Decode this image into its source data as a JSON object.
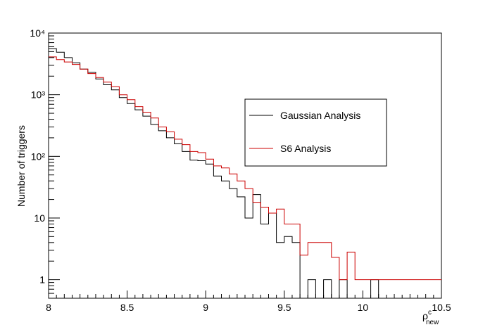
{
  "chart_data": {
    "type": "line",
    "style": "step-histogram",
    "xlabel": "ρ",
    "xlabel_sup": "c",
    "xlabel_sub": "new",
    "ylabel": "Number of triggers",
    "xlim": [
      8,
      10.5
    ],
    "ylim": [
      0.5,
      10000
    ],
    "yscale": "log",
    "bin_width": 0.05,
    "bin_start": 8.0,
    "x_ticks": [
      "8",
      "8.5",
      "9",
      "9.5",
      "10",
      "10.5"
    ],
    "x_tick_values": [
      8,
      8.5,
      9,
      9.5,
      10,
      10.5
    ],
    "y_ticks": [
      "1",
      "10",
      "10²",
      "10³",
      "10⁴"
    ],
    "y_tick_values": [
      1,
      10,
      100,
      1000,
      10000
    ],
    "legend_position": "center-right",
    "series": [
      {
        "name": "Gaussian Analysis",
        "color": "#000000",
        "values": [
          5600,
          4900,
          4000,
          3300,
          2600,
          2300,
          1800,
          1450,
          1200,
          900,
          720,
          570,
          450,
          330,
          260,
          200,
          160,
          120,
          87,
          85,
          75,
          48,
          40,
          30,
          22,
          10,
          24,
          8,
          12,
          4,
          5,
          4,
          0,
          1,
          0,
          1,
          0,
          1,
          0,
          0,
          0,
          1,
          0,
          0,
          0,
          0,
          0,
          0,
          0,
          0
        ]
      },
      {
        "name": "S6 Analysis",
        "color": "#cc0000",
        "values": [
          4100,
          3700,
          3400,
          3100,
          2600,
          2200,
          1900,
          1600,
          1350,
          1000,
          830,
          640,
          520,
          420,
          300,
          250,
          190,
          155,
          120,
          115,
          90,
          70,
          65,
          52,
          40,
          30,
          18,
          15,
          12,
          14,
          8,
          8,
          2.5,
          4,
          4,
          4,
          2.3,
          1,
          2.8,
          1,
          1,
          1,
          1,
          1,
          1,
          1,
          1,
          1,
          1,
          1
        ]
      }
    ]
  }
}
